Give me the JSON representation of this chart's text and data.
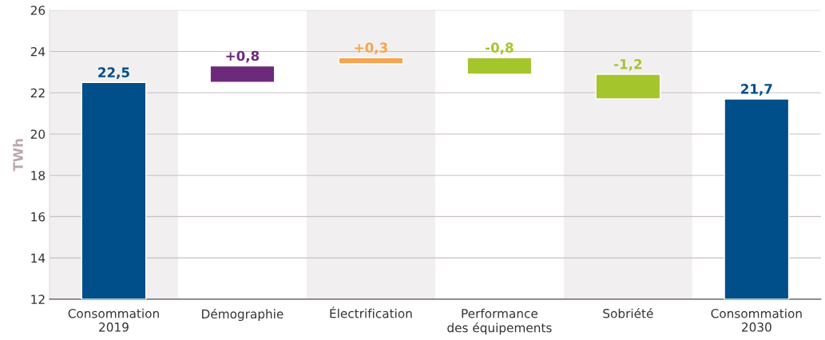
{
  "chart_data": {
    "type": "bar",
    "ylabel": "TWh",
    "categories": [
      "Consommation\n2019",
      "Démographie",
      "Électrification",
      "Performance\ndes équipements",
      "Sobriété",
      "Consommation\n2030"
    ],
    "values": [
      22.5,
      0.8,
      0.3,
      -0.8,
      -1.2,
      21.7
    ],
    "base": [
      null,
      22.5,
      23.4,
      23.7,
      22.9,
      null
    ],
    "colors": [
      "#004f8a",
      "#6d2a7b",
      "#f5a54f",
      "#a5c52c",
      "#a5c52c",
      "#004f8a"
    ],
    "value_labels": [
      "22,5",
      "+0,8",
      "+0,3",
      "-0,8",
      "-1,2",
      "21,7"
    ],
    "ylim": [
      12,
      26
    ],
    "yticks": [
      12,
      14,
      16,
      18,
      20,
      22,
      24,
      26
    ],
    "grid": "y"
  }
}
